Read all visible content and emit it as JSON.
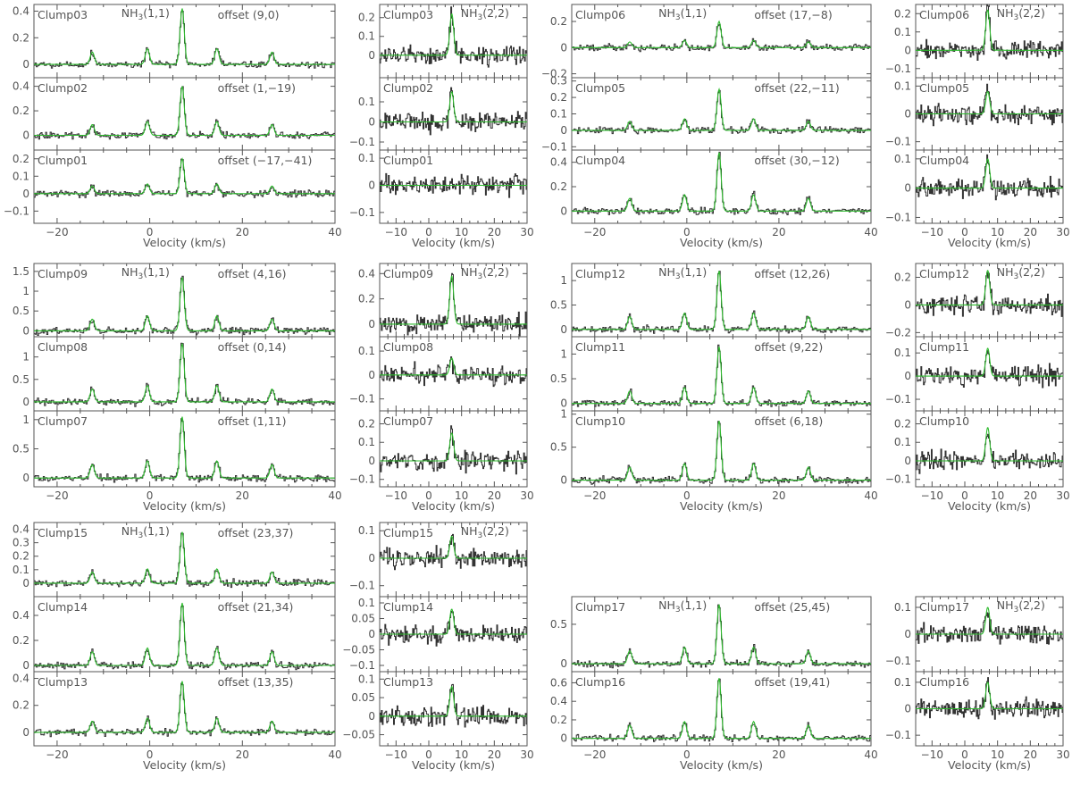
{
  "chart_data": {
    "type": "line",
    "x_axis_label": "Velocity (km/s)",
    "y_axis_label": "",
    "spectrum_color": "#333333",
    "fit_color": "#2dbb2d",
    "frame_color": "#555555",
    "line_labels": {
      "nh3_11": "NH3(1,1)",
      "nh3_22": "NH3(2,2)"
    },
    "nh3_11_panel": {
      "xlim": [
        -25,
        40
      ],
      "xticks": [
        -20,
        0,
        20,
        40
      ]
    },
    "nh3_22_panel": {
      "xlim": [
        -15,
        30
      ],
      "xticks": [
        -10,
        0,
        10,
        20,
        30
      ]
    },
    "groups": [
      {
        "clumps": [
          {
            "id": "Clump03",
            "offset": "offset (9,0)",
            "peak_11": 0.42,
            "peak_22": 0.22,
            "ylim_11": [
              -0.1,
              0.45
            ],
            "yticks_11": [
              0,
              0.2,
              0.4
            ],
            "ylim_22": [
              -0.12,
              0.27
            ],
            "yticks_22": [
              0,
              0.1,
              0.2
            ]
          },
          {
            "id": "Clump02",
            "offset": "offset (1,−19)",
            "peak_11": 0.4,
            "peak_22": 0.15,
            "ylim_11": [
              -0.12,
              0.47
            ],
            "yticks_11": [
              0,
              0.2,
              0.4
            ],
            "ylim_22": [
              -0.14,
              0.22
            ],
            "yticks_22": [
              -0.1,
              0,
              0.1
            ]
          },
          {
            "id": "Clump01",
            "offset": "offset (−17,−41)",
            "peak_11": 0.2,
            "peak_22": 0.0,
            "ylim_11": [
              -0.17,
              0.25
            ],
            "yticks_11": [
              -0.1,
              0,
              0.1,
              0.2
            ],
            "ylim_22": [
              -0.14,
              0.13
            ],
            "yticks_22": [
              -0.1,
              0,
              0.1
            ]
          }
        ]
      },
      {
        "clumps": [
          {
            "id": "Clump06",
            "offset": "offset (17,−8)",
            "peak_11": 0.2,
            "peak_22": 0.22,
            "ylim_11": [
              -0.23,
              0.33
            ],
            "yticks_11": [
              -0.2,
              0,
              0.2
            ],
            "ylim_22": [
              -0.15,
              0.25
            ],
            "yticks_22": [
              -0.1,
              0,
              0.1,
              0.2
            ]
          },
          {
            "id": "Clump05",
            "offset": "offset (22,−11)",
            "peak_11": 0.25,
            "peak_22": 0.08,
            "ylim_11": [
              -0.12,
              0.32
            ],
            "yticks_11": [
              -0.1,
              0,
              0.1,
              0.2,
              0.3
            ],
            "ylim_22": [
              -0.13,
              0.13
            ],
            "yticks_22": [
              -0.1,
              0,
              0.1
            ]
          },
          {
            "id": "Clump04",
            "offset": "offset (30,−12)",
            "peak_11": 0.48,
            "peak_22": 0.1,
            "ylim_11": [
              -0.1,
              0.5
            ],
            "yticks_11": [
              0,
              0.2,
              0.4
            ],
            "ylim_22": [
              -0.12,
              0.13
            ],
            "yticks_22": [
              -0.1,
              0,
              0.1
            ]
          }
        ]
      },
      {
        "clumps": [
          {
            "id": "Clump09",
            "offset": "offset (4,16)",
            "peak_11": 1.35,
            "peak_22": 0.38,
            "ylim_11": [
              -0.15,
              1.7
            ],
            "yticks_11": [
              0,
              0.5,
              1,
              1.5
            ],
            "ylim_22": [
              -0.1,
              0.48
            ],
            "yticks_22": [
              0,
              0.2,
              0.4
            ]
          },
          {
            "id": "Clump08",
            "offset": "offset (0,14)",
            "peak_11": 1.3,
            "peak_22": 0.07,
            "ylim_11": [
              -0.2,
              1.45
            ],
            "yticks_11": [
              0,
              0.5,
              1
            ],
            "ylim_22": [
              -0.15,
              0.16
            ],
            "yticks_22": [
              -0.1,
              0,
              0.1
            ]
          },
          {
            "id": "Clump07",
            "offset": "offset (1,11)",
            "peak_11": 1.05,
            "peak_22": 0.15,
            "ylim_11": [
              -0.15,
              1.15
            ],
            "yticks_11": [
              0,
              0.5,
              1
            ],
            "ylim_22": [
              -0.14,
              0.27
            ],
            "yticks_22": [
              -0.1,
              0,
              0.1,
              0.2
            ]
          }
        ]
      },
      {
        "clumps": [
          {
            "id": "Clump12",
            "offset": "offset (12,26)",
            "peak_11": 1.2,
            "peak_22": 0.25,
            "ylim_11": [
              -0.15,
              1.35
            ],
            "yticks_11": [
              0,
              0.5,
              1
            ],
            "ylim_22": [
              -0.23,
              0.3
            ],
            "yticks_22": [
              -0.2,
              0,
              0.2
            ]
          },
          {
            "id": "Clump11",
            "offset": "offset (9,22)",
            "peak_11": 1.15,
            "peak_22": 0.12,
            "ylim_11": [
              -0.15,
              1.35
            ],
            "yticks_11": [
              0,
              0.5,
              1
            ],
            "ylim_22": [
              -0.15,
              0.17
            ],
            "yticks_22": [
              -0.1,
              0,
              0.1
            ]
          },
          {
            "id": "Clump10",
            "offset": "offset (6,18)",
            "peak_11": 0.9,
            "peak_22": 0.18,
            "ylim_11": [
              -0.1,
              1.05
            ],
            "yticks_11": [
              0,
              0.5,
              1
            ],
            "ylim_22": [
              -0.14,
              0.27
            ],
            "yticks_22": [
              -0.1,
              0,
              0.1,
              0.2
            ]
          }
        ]
      },
      {
        "clumps": [
          {
            "id": "Clump15",
            "offset": "offset (23,37)",
            "peak_11": 0.38,
            "peak_22": 0.08,
            "ylim_11": [
              -0.1,
              0.45
            ],
            "yticks_11": [
              0,
              0.1,
              0.2,
              0.3,
              0.4
            ],
            "ylim_22": [
              -0.14,
              0.13
            ],
            "yticks_22": [
              -0.1,
              0,
              0.1
            ]
          },
          {
            "id": "Clump14",
            "offset": "offset (21,34)",
            "peak_11": 0.5,
            "peak_22": 0.08,
            "ylim_11": [
              -0.05,
              0.55
            ],
            "yticks_11": [
              0,
              0.2,
              0.4
            ],
            "ylim_22": [
              -0.12,
              0.12
            ],
            "yticks_22": [
              -0.1,
              -0.05,
              0,
              0.05,
              0.1
            ]
          },
          {
            "id": "Clump13",
            "offset": "offset (13,35)",
            "peak_11": 0.38,
            "peak_22": 0.08,
            "ylim_11": [
              -0.1,
              0.45
            ],
            "yticks_11": [
              0,
              0.2,
              0.4
            ],
            "ylim_22": [
              -0.08,
              0.12
            ],
            "yticks_22": [
              -0.05,
              0,
              0.05,
              0.1
            ]
          }
        ]
      },
      {
        "clumps": [
          {
            "id": "Clump17",
            "offset": "offset (25,45)",
            "peak_11": 0.75,
            "peak_22": 0.1,
            "ylim_11": [
              -0.1,
              0.85
            ],
            "yticks_11": [
              0,
              0.5
            ],
            "ylim_22": [
              -0.14,
              0.14
            ],
            "yticks_22": [
              -0.1,
              0,
              0.1
            ]
          },
          {
            "id": "Clump16",
            "offset": "offset (19,41)",
            "peak_11": 0.65,
            "peak_22": 0.1,
            "ylim_11": [
              -0.08,
              0.72
            ],
            "yticks_11": [
              0,
              0.2,
              0.4,
              0.6
            ],
            "ylim_22": [
              -0.14,
              0.14
            ],
            "yticks_22": [
              -0.1,
              0,
              0.1
            ]
          }
        ]
      }
    ]
  }
}
